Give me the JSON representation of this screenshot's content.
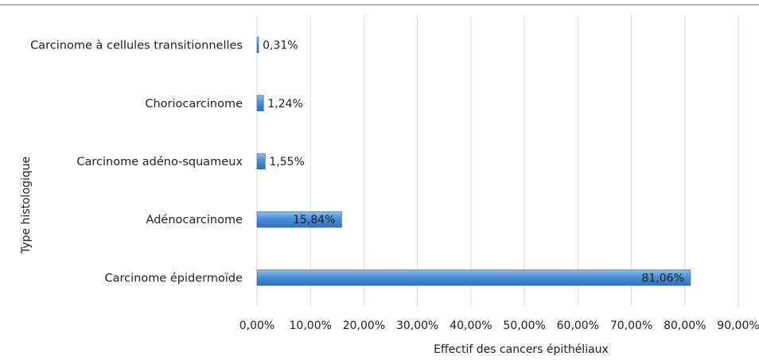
{
  "chart_data": {
    "type": "bar",
    "orientation": "horizontal",
    "title": "",
    "xlabel": "Effectif des cancers épithéliaux",
    "ylabel": "Type histologique",
    "xlim": [
      0,
      90
    ],
    "x_ticks": [
      0,
      10,
      20,
      30,
      40,
      50,
      60,
      70,
      80,
      90
    ],
    "x_tick_labels": [
      "0,00%",
      "10,00%",
      "20,00%",
      "30,00%",
      "40,00%",
      "50,00%",
      "60,00%",
      "70,00%",
      "80,00%",
      "90,00%"
    ],
    "grid": "vertical",
    "legend": "none",
    "categories": [
      "Carcinome à cellules transitionnelles",
      "Choriocarcinome",
      "Carcinome adéno-squameux",
      "Adénocarcinome",
      "Carcinome épidermoïde"
    ],
    "values": [
      0.31,
      1.24,
      1.55,
      15.84,
      81.06
    ],
    "data_labels": [
      "0,31%",
      "1,24%",
      "1,55%",
      "15,84%",
      "81,06%"
    ],
    "bar_color": "#4a8fd8",
    "bar_color_light": "#8fbdf0",
    "bar_edge_color": "#2f6fb8"
  }
}
